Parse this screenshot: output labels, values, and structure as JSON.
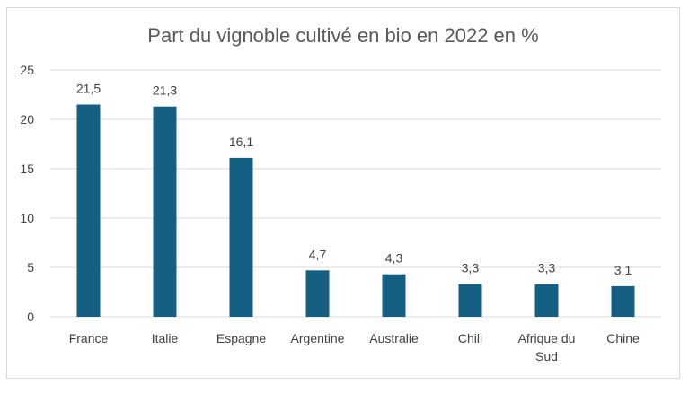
{
  "chart_data": {
    "type": "bar",
    "title": "Part du vignoble cultivé en bio en 2022 en %",
    "xlabel": "",
    "ylabel": "",
    "ylim": [
      0,
      25
    ],
    "yticks": [
      0,
      5,
      10,
      15,
      20,
      25
    ],
    "grid": true,
    "legend": "none",
    "categories": [
      [
        "France"
      ],
      [
        "Italie"
      ],
      [
        "Espagne"
      ],
      [
        "Argentine"
      ],
      [
        "Australie"
      ],
      [
        "Chili"
      ],
      [
        "Afrique du",
        "Sud"
      ],
      [
        "Chine"
      ]
    ],
    "values": [
      21.5,
      21.3,
      16.1,
      4.7,
      4.3,
      3.3,
      3.3,
      3.1
    ],
    "value_labels": [
      "21,5",
      "21,3",
      "16,1",
      "4,7",
      "4,3",
      "3,3",
      "3,3",
      "3,1"
    ],
    "bar_color": "#156082",
    "grid_color": "#d9d9d9"
  }
}
